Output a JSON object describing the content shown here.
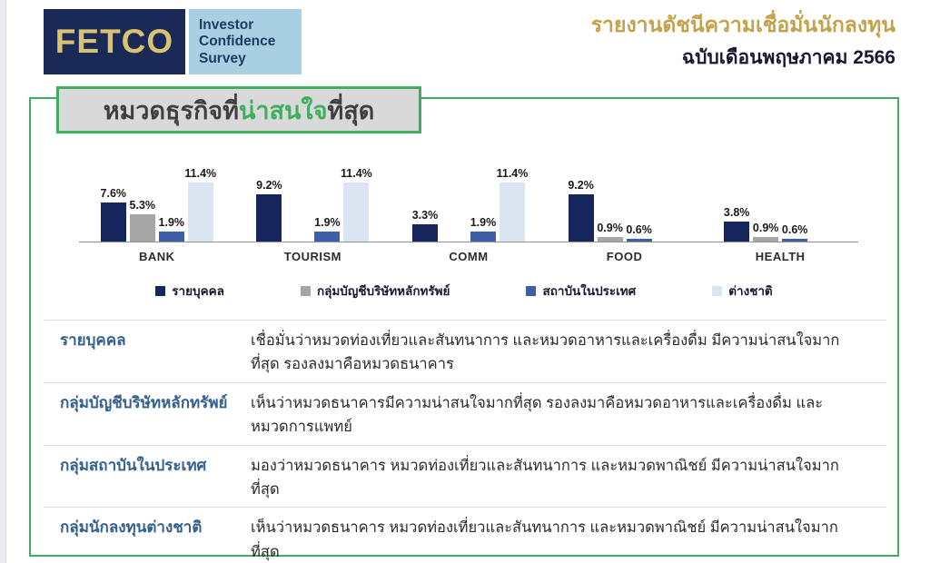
{
  "header": {
    "logo": {
      "brand": "FETCO",
      "tagline_lines": [
        "Investor",
        "Confidence",
        "Survey"
      ]
    },
    "report_title": "รายงานดัชนีความเชื่อมั่นนักลงทุน",
    "report_edition": "ฉบับเดือนพฤษภาคม 2566"
  },
  "section": {
    "title_prefix": "หมวดธุรกิจที่",
    "title_highlight": "น่าสนใจ",
    "title_suffix": "ที่สุด"
  },
  "chart_data": {
    "type": "bar",
    "categories": [
      "BANK",
      "TOURISM",
      "COMM",
      "FOOD",
      "HEALTH"
    ],
    "series": [
      {
        "name": "รายบุคคล",
        "color": "#16265C",
        "values": [
          7.6,
          9.2,
          3.3,
          9.2,
          3.8
        ]
      },
      {
        "name": "กลุ่มบัญชีบริษัทหลักทรัพย์",
        "color": "#A6A6A6",
        "values": [
          5.3,
          0,
          0,
          0.9,
          0.9
        ]
      },
      {
        "name": "สถาบันในประเทศ",
        "color": "#3C5FA7",
        "values": [
          1.9,
          1.9,
          1.9,
          0.6,
          0.6
        ]
      },
      {
        "name": "ต่างชาติ",
        "color": "#DBE5F1",
        "values": [
          11.4,
          11.4,
          11.4,
          0,
          0
        ]
      }
    ],
    "value_suffix": "%",
    "title": "หมวดธุรกิจที่น่าสนใจที่สุด",
    "xlabel": "",
    "ylabel": "",
    "ylim": [
      0,
      12
    ],
    "grid": false,
    "legend_position": "bottom"
  },
  "table": {
    "rows": [
      {
        "label": "รายบุคคล",
        "text": "เชื่อมั่นว่าหมวดท่องเที่ยวและสันทนาการ และหมวดอาหารและเครื่องดื่ม มีความน่าสนใจมากที่สุด รองลงมาคือหมวดธนาคาร"
      },
      {
        "label": "กลุ่มบัญชีบริษัทหลักทรัพย์",
        "text": "เห็นว่าหมวดธนาคารมีความน่าสนใจมากที่สุด รองลงมาคือหมวดอาหารและเครื่องดื่ม และ หมวดการแพทย์"
      },
      {
        "label": "กลุ่มสถาบันในประเทศ",
        "text": "มองว่าหมวดธนาคาร หมวดท่องเที่ยวและสันทนาการ และหมวดพาณิชย์ มีความน่าสนใจมากที่สุด"
      },
      {
        "label": "กลุ่มนักลงทุนต่างชาติ",
        "text": "เห็นว่าหมวดธนาคาร หมวดท่องเที่ยวและสันทนาการ และหมวดพาณิชย์ มีความน่าสนใจมากที่สุด"
      }
    ]
  },
  "colors": {
    "accent_green": "#3fae5e",
    "accent_gold": "#c2a24b",
    "logo_navy": "#1b2957",
    "logo_gold": "#d9c271",
    "logo_lightblue": "#a9cfe2",
    "table_label_blue": "#33608c"
  }
}
